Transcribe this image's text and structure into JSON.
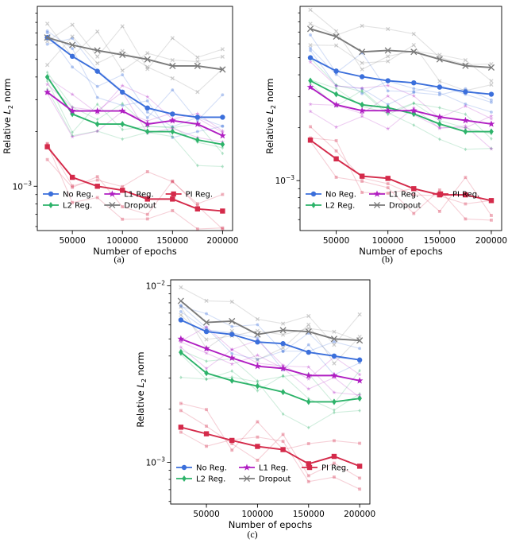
{
  "chart_data": [
    {
      "type": "line",
      "caption": "(a)",
      "xlabel": "Number of epochs",
      "ylabel": "Relative L2 norm",
      "yscale": "log",
      "x": [
        25000,
        50000,
        75000,
        100000,
        125000,
        150000,
        175000,
        200000
      ],
      "xticks": [
        "50000",
        "100000",
        "150000",
        "200000"
      ],
      "ylim": [
        0.00057,
        0.0098
      ],
      "series": [
        {
          "name": "No Reg.",
          "color": "#3b6fdb",
          "marker": "circle",
          "values": [
            0.0066,
            0.0052,
            0.0043,
            0.0033,
            0.0027,
            0.0025,
            0.0024,
            0.0024
          ]
        },
        {
          "name": "L2 Reg.",
          "color": "#2db36a",
          "marker": "diamond",
          "values": [
            0.004,
            0.0025,
            0.0022,
            0.0022,
            0.002,
            0.002,
            0.0018,
            0.0017
          ]
        },
        {
          "name": "L1 Reg.",
          "color": "#b01ec2",
          "marker": "star",
          "values": [
            0.0033,
            0.0026,
            0.0026,
            0.0026,
            0.0022,
            0.0023,
            0.0022,
            0.0019
          ]
        },
        {
          "name": "Dropout",
          "color": "#7a7a7a",
          "marker": "x",
          "values": [
            0.0066,
            0.006,
            0.0056,
            0.0053,
            0.005,
            0.0046,
            0.0046,
            0.0044
          ]
        },
        {
          "name": "PI Reg.",
          "color": "#d42a4a",
          "marker": "square",
          "values": [
            0.00165,
            0.00112,
            0.001,
            0.00095,
            0.00085,
            0.00085,
            0.00075,
            0.00073
          ]
        }
      ]
    },
    {
      "type": "line",
      "caption": "(b)",
      "xlabel": "Number of epochs",
      "ylabel": "Relative L2 norm",
      "yscale": "log",
      "x": [
        25000,
        50000,
        75000,
        100000,
        125000,
        150000,
        175000,
        200000
      ],
      "xticks": [
        "50000",
        "100000",
        "150000",
        "200000"
      ],
      "ylim": [
        0.00052,
        0.0098
      ],
      "series": [
        {
          "name": "No Reg.",
          "color": "#3b6fdb",
          "marker": "circle",
          "values": [
            0.005,
            0.0042,
            0.0039,
            0.0037,
            0.0036,
            0.0034,
            0.0032,
            0.0031
          ]
        },
        {
          "name": "L2 Reg.",
          "color": "#2db36a",
          "marker": "diamond",
          "values": [
            0.0037,
            0.0031,
            0.0027,
            0.0026,
            0.0024,
            0.0021,
            0.0019,
            0.0019
          ]
        },
        {
          "name": "L1 Reg.",
          "color": "#b01ec2",
          "marker": "star",
          "values": [
            0.0034,
            0.0027,
            0.0025,
            0.0025,
            0.0025,
            0.0023,
            0.0022,
            0.0021
          ]
        },
        {
          "name": "Dropout",
          "color": "#7a7a7a",
          "marker": "x",
          "values": [
            0.0073,
            0.0066,
            0.0054,
            0.0055,
            0.0054,
            0.0049,
            0.0045,
            0.0044
          ]
        },
        {
          "name": "PI Reg.",
          "color": "#d42a4a",
          "marker": "square",
          "values": [
            0.0017,
            0.00133,
            0.00106,
            0.00103,
            0.0009,
            0.00083,
            0.00083,
            0.00077
          ]
        }
      ]
    },
    {
      "type": "line",
      "caption": "(c)",
      "xlabel": "Number of epochs",
      "ylabel": "Relative L2 norm",
      "yscale": "log",
      "x": [
        25000,
        50000,
        75000,
        100000,
        125000,
        150000,
        175000,
        200000
      ],
      "xticks": [
        "50000",
        "100000",
        "150000",
        "200000"
      ],
      "ylim": [
        0.00058,
        0.0108
      ],
      "series": [
        {
          "name": "No Reg.",
          "color": "#3b6fdb",
          "marker": "circle",
          "values": [
            0.0064,
            0.0055,
            0.0053,
            0.0048,
            0.0047,
            0.0042,
            0.004,
            0.0038
          ]
        },
        {
          "name": "L2 Reg.",
          "color": "#2db36a",
          "marker": "diamond",
          "values": [
            0.0042,
            0.0032,
            0.0029,
            0.0027,
            0.0025,
            0.0022,
            0.0022,
            0.0023
          ]
        },
        {
          "name": "L1 Reg.",
          "color": "#b01ec2",
          "marker": "star",
          "values": [
            0.005,
            0.0044,
            0.0039,
            0.0035,
            0.0034,
            0.0031,
            0.0031,
            0.0029
          ]
        },
        {
          "name": "Dropout",
          "color": "#7a7a7a",
          "marker": "x",
          "values": [
            0.0082,
            0.0062,
            0.0063,
            0.0053,
            0.0056,
            0.0055,
            0.005,
            0.0049
          ]
        },
        {
          "name": "PI Reg.",
          "color": "#d42a4a",
          "marker": "square",
          "values": [
            0.00158,
            0.00145,
            0.00133,
            0.00123,
            0.00118,
            0.00098,
            0.00108,
            0.00095
          ]
        }
      ]
    }
  ]
}
